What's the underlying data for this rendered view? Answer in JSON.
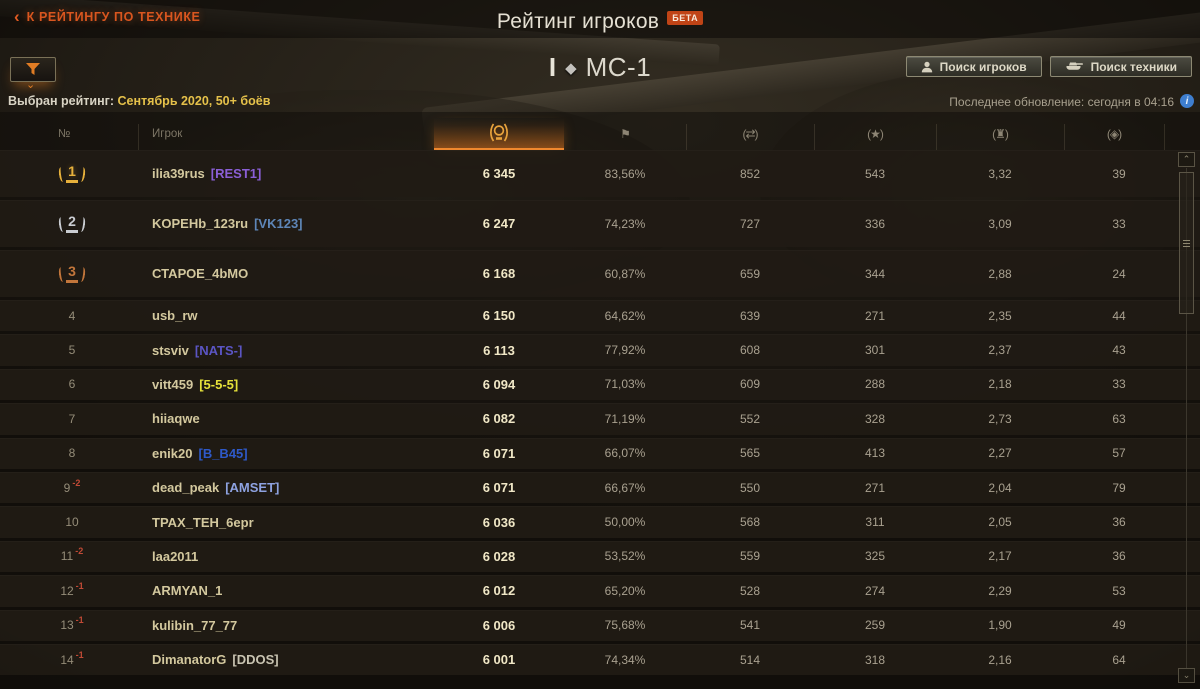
{
  "header": {
    "back_link": "К РЕЙТИНГУ ПО ТЕХНИКЕ",
    "title": "Рейтинг игроков",
    "beta_badge": "БЕТА",
    "vehicle": {
      "tier": "I",
      "class_icon": "light-tank-diamond-icon",
      "name": "МС-1"
    },
    "search_players_button": "Поиск игроков",
    "search_vehicles_button": "Поиск техники",
    "selected_rating_label": "Выбран рейтинг:",
    "selected_rating_value": "Сентябрь 2020, 50+ боёв",
    "last_update": "Последнее обновление: сегодня в 04:16",
    "info_icon": "i"
  },
  "icons": {
    "filter": "funnel-icon",
    "search_players": "person-icon",
    "search_vehicles": "tank-icon",
    "col_rating": "laurel-medal-icon",
    "col_win": "flag-icon",
    "col_damage": "damage-arrows-icon",
    "col_exp": "star-icon",
    "col_destroyed": "destroyed-tank-icon",
    "col_spotted": "spotted-icon",
    "glyph_win": "⚑",
    "glyph_damage": "(⇄)",
    "glyph_exp": "(★)",
    "glyph_destroyed": "(♜)",
    "glyph_spotted": "(◈)",
    "filter_chevron": "⌄",
    "scroll_up": "▲",
    "scroll_down": "▼"
  },
  "colors": {
    "accent_orange": "#f0882e",
    "back_link": "#d9561f",
    "gold_text": "#e5c14a",
    "rank_change_negative": "#c14a36",
    "medal_gold": "#e7b13c",
    "medal_silver": "#cacdd2",
    "medal_bronze": "#c2763b"
  },
  "table": {
    "col_rank_label": "№",
    "col_player_label": "Игрок",
    "rows": [
      {
        "rank": "1",
        "medal": "gold",
        "change": "",
        "player": "ilia39rus",
        "clan": "[REST1]",
        "clan_color": "#8a5fd6",
        "rating": "6 345",
        "win": "83,56%",
        "damage": "852",
        "exp": "543",
        "destroyed": "3,32",
        "spotted": "39"
      },
      {
        "rank": "2",
        "medal": "silver",
        "change": "",
        "player": "KOPEHb_123ru",
        "clan": "[VK123]",
        "clan_color": "#5e86b8",
        "rating": "6 247",
        "win": "74,23%",
        "damage": "727",
        "exp": "336",
        "destroyed": "3,09",
        "spotted": "33"
      },
      {
        "rank": "3",
        "medal": "bronze",
        "change": "",
        "player": "СТАРОЕ_4bMO",
        "clan": "",
        "clan_color": "",
        "rating": "6 168",
        "win": "60,87%",
        "damage": "659",
        "exp": "344",
        "destroyed": "2,88",
        "spotted": "24"
      },
      {
        "rank": "4",
        "medal": "",
        "change": "",
        "player": "usb_rw",
        "clan": "",
        "clan_color": "",
        "rating": "6 150",
        "win": "64,62%",
        "damage": "639",
        "exp": "271",
        "destroyed": "2,35",
        "spotted": "44"
      },
      {
        "rank": "5",
        "medal": "",
        "change": "",
        "player": "stsviv",
        "clan": "[NATS-]",
        "clan_color": "#5b55c4",
        "rating": "6 113",
        "win": "77,92%",
        "damage": "608",
        "exp": "301",
        "destroyed": "2,37",
        "spotted": "43"
      },
      {
        "rank": "6",
        "medal": "",
        "change": "",
        "player": "vitt459",
        "clan": "[5-5-5]",
        "clan_color": "#e6e23a",
        "rating": "6 094",
        "win": "71,03%",
        "damage": "609",
        "exp": "288",
        "destroyed": "2,18",
        "spotted": "33"
      },
      {
        "rank": "7",
        "medal": "",
        "change": "",
        "player": "hiiaqwe",
        "clan": "",
        "clan_color": "",
        "rating": "6 082",
        "win": "71,19%",
        "damage": "552",
        "exp": "328",
        "destroyed": "2,73",
        "spotted": "63"
      },
      {
        "rank": "8",
        "medal": "",
        "change": "",
        "player": "enik20",
        "clan": "[B_B45]",
        "clan_color": "#2e59c8",
        "rating": "6 071",
        "win": "66,07%",
        "damage": "565",
        "exp": "413",
        "destroyed": "2,27",
        "spotted": "57"
      },
      {
        "rank": "9",
        "medal": "",
        "change": "-2",
        "player": "dead_peak",
        "clan": "[AMSET]",
        "clan_color": "#8ea2e0",
        "rating": "6 071",
        "win": "66,67%",
        "damage": "550",
        "exp": "271",
        "destroyed": "2,04",
        "spotted": "79"
      },
      {
        "rank": "10",
        "medal": "",
        "change": "",
        "player": "TPAX_TEH_6epr",
        "clan": "",
        "clan_color": "",
        "rating": "6 036",
        "win": "50,00%",
        "damage": "568",
        "exp": "311",
        "destroyed": "2,05",
        "spotted": "36"
      },
      {
        "rank": "11",
        "medal": "",
        "change": "-2",
        "player": "laa2011",
        "clan": "",
        "clan_color": "",
        "rating": "6 028",
        "win": "53,52%",
        "damage": "559",
        "exp": "325",
        "destroyed": "2,17",
        "spotted": "36"
      },
      {
        "rank": "12",
        "medal": "",
        "change": "-1",
        "player": "ARMYAN_1",
        "clan": "",
        "clan_color": "",
        "rating": "6 012",
        "win": "65,20%",
        "damage": "528",
        "exp": "274",
        "destroyed": "2,29",
        "spotted": "53"
      },
      {
        "rank": "13",
        "medal": "",
        "change": "-1",
        "player": "kulibin_77_77",
        "clan": "",
        "clan_color": "",
        "rating": "6 006",
        "win": "75,68%",
        "damage": "541",
        "exp": "259",
        "destroyed": "1,90",
        "spotted": "49"
      },
      {
        "rank": "14",
        "medal": "",
        "change": "-1",
        "player": "DimanatorG",
        "clan": "[DDOS]",
        "clan_color": "#c9c4b2",
        "rating": "6 001",
        "win": "74,34%",
        "damage": "514",
        "exp": "318",
        "destroyed": "2,16",
        "spotted": "64"
      }
    ]
  }
}
